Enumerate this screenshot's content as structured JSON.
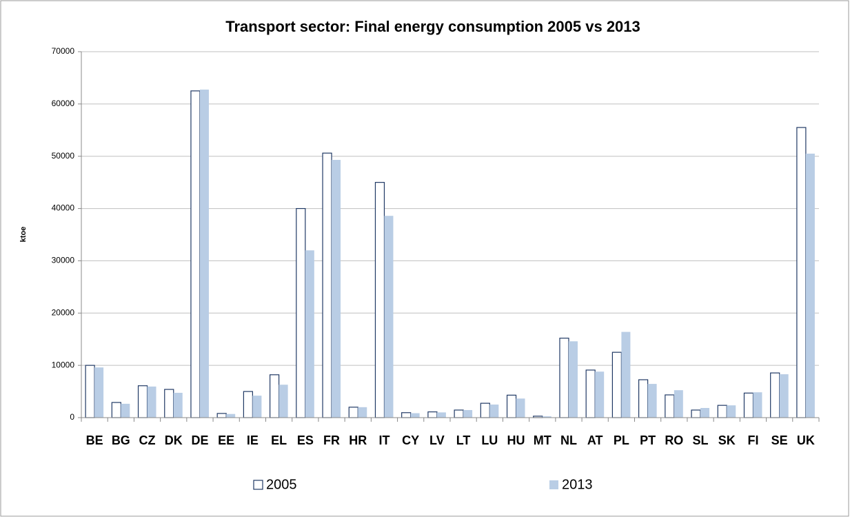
{
  "chart_data": {
    "type": "bar",
    "title": "Transport sector: Final energy consumption 2005 vs 2013",
    "y_label": "ktoe",
    "categories": [
      "BE",
      "BG",
      "CZ",
      "DK",
      "DE",
      "EE",
      "IE",
      "EL",
      "ES",
      "FR",
      "HR",
      "IT",
      "CY",
      "LV",
      "LT",
      "LU",
      "HU",
      "MT",
      "NL",
      "AT",
      "PL",
      "PT",
      "RO",
      "SL",
      "SK",
      "FI",
      "SE",
      "UK"
    ],
    "series": [
      {
        "name": "2005",
        "color": "#ffffff",
        "stroke": "#1f3864",
        "values": [
          10000,
          2900,
          6100,
          5400,
          62500,
          800,
          5000,
          8200,
          40000,
          50600,
          2000,
          45000,
          950,
          1100,
          1450,
          2750,
          4300,
          280,
          15200,
          9100,
          12500,
          7250,
          4350,
          1450,
          2350,
          4700,
          8550,
          55500
        ]
      },
      {
        "name": "2013",
        "color": "#b9cde5",
        "values": [
          9600,
          2650,
          5950,
          4750,
          62750,
          700,
          4200,
          6300,
          32000,
          49300,
          2000,
          38600,
          850,
          1000,
          1450,
          2500,
          3650,
          250,
          14600,
          8800,
          16400,
          6450,
          5250,
          1850,
          2350,
          4850,
          8300,
          50500
        ]
      }
    ],
    "ylim": [
      0,
      70000
    ],
    "yticks": [
      0,
      10000,
      20000,
      30000,
      40000,
      50000,
      60000,
      70000
    ],
    "grid": true,
    "legend": "bottom"
  }
}
